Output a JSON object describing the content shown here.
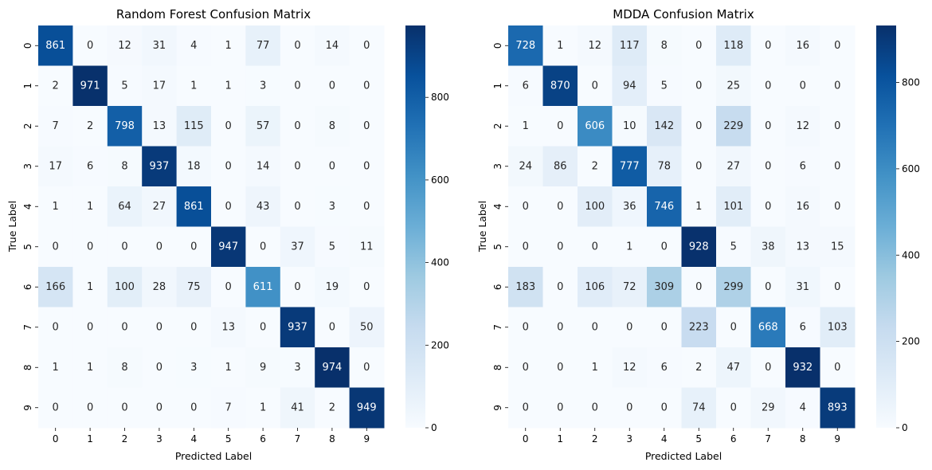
{
  "chart_data": [
    {
      "type": "heatmap",
      "title": "Random Forest Confusion Matrix",
      "xlabel": "Predicted Label",
      "ylabel": "True Label",
      "x_categories": [
        "0",
        "1",
        "2",
        "3",
        "4",
        "5",
        "6",
        "7",
        "8",
        "9"
      ],
      "y_categories": [
        "0",
        "1",
        "2",
        "3",
        "4",
        "5",
        "6",
        "7",
        "8",
        "9"
      ],
      "matrix": [
        [
          861,
          0,
          12,
          31,
          4,
          1,
          77,
          0,
          14,
          0
        ],
        [
          2,
          971,
          5,
          17,
          1,
          1,
          3,
          0,
          0,
          0
        ],
        [
          7,
          2,
          798,
          13,
          115,
          0,
          57,
          0,
          8,
          0
        ],
        [
          17,
          6,
          8,
          937,
          18,
          0,
          14,
          0,
          0,
          0
        ],
        [
          1,
          1,
          64,
          27,
          861,
          0,
          43,
          0,
          3,
          0
        ],
        [
          0,
          0,
          0,
          0,
          0,
          947,
          0,
          37,
          5,
          11
        ],
        [
          166,
          1,
          100,
          28,
          75,
          0,
          611,
          0,
          19,
          0
        ],
        [
          0,
          0,
          0,
          0,
          0,
          13,
          0,
          937,
          0,
          50
        ],
        [
          1,
          1,
          8,
          0,
          3,
          1,
          9,
          3,
          974,
          0
        ],
        [
          0,
          0,
          0,
          0,
          0,
          7,
          1,
          41,
          2,
          949
        ]
      ],
      "colorbar": {
        "min": 0,
        "max": 974,
        "ticks": [
          0,
          200,
          400,
          600,
          800
        ]
      },
      "colormap": "Blues"
    },
    {
      "type": "heatmap",
      "title": "MDDA Confusion Matrix",
      "xlabel": "Predicted Label",
      "ylabel": "True Label",
      "x_categories": [
        "0",
        "1",
        "2",
        "3",
        "4",
        "5",
        "6",
        "7",
        "8",
        "9"
      ],
      "y_categories": [
        "0",
        "1",
        "2",
        "3",
        "4",
        "5",
        "6",
        "7",
        "8",
        "9"
      ],
      "matrix": [
        [
          728,
          1,
          12,
          117,
          8,
          0,
          118,
          0,
          16,
          0
        ],
        [
          6,
          870,
          0,
          94,
          5,
          0,
          25,
          0,
          0,
          0
        ],
        [
          1,
          0,
          606,
          10,
          142,
          0,
          229,
          0,
          12,
          0
        ],
        [
          24,
          86,
          2,
          777,
          78,
          0,
          27,
          0,
          6,
          0
        ],
        [
          0,
          0,
          100,
          36,
          746,
          1,
          101,
          0,
          16,
          0
        ],
        [
          0,
          0,
          0,
          1,
          0,
          928,
          5,
          38,
          13,
          15
        ],
        [
          183,
          0,
          106,
          72,
          309,
          0,
          299,
          0,
          31,
          0
        ],
        [
          0,
          0,
          0,
          0,
          0,
          223,
          0,
          668,
          6,
          103
        ],
        [
          0,
          0,
          1,
          12,
          6,
          2,
          47,
          0,
          932,
          0
        ],
        [
          0,
          0,
          0,
          0,
          0,
          74,
          0,
          29,
          4,
          893
        ]
      ],
      "colorbar": {
        "min": 0,
        "max": 932,
        "ticks": [
          0,
          200,
          400,
          600,
          800
        ]
      },
      "colormap": "Blues"
    }
  ]
}
